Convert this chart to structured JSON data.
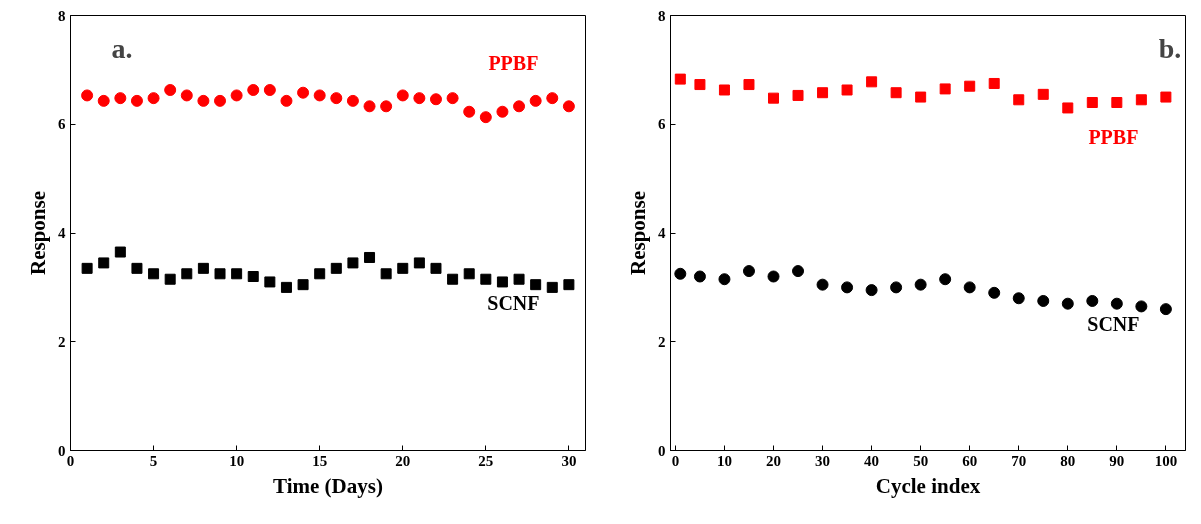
{
  "chart_data": [
    {
      "type": "scatter",
      "xlabel": "Time (Days)",
      "ylabel": "Response",
      "annotations": [
        "a."
      ],
      "xlim": [
        0,
        31
      ],
      "xticks": [
        0,
        5,
        10,
        15,
        20,
        25,
        30
      ],
      "ylim": [
        0,
        8
      ],
      "yticks": [
        0,
        2,
        4,
        6,
        8
      ],
      "grid": false,
      "x": [
        1,
        2,
        3,
        4,
        5,
        6,
        7,
        8,
        9,
        10,
        11,
        12,
        13,
        14,
        15,
        16,
        17,
        18,
        19,
        20,
        21,
        22,
        23,
        24,
        25,
        26,
        27,
        28,
        29,
        30
      ],
      "series": [
        {
          "name": "PPBF",
          "color": "#ff0000",
          "marker": "circle",
          "values": [
            6.53,
            6.43,
            6.48,
            6.43,
            6.48,
            6.63,
            6.53,
            6.43,
            6.43,
            6.53,
            6.63,
            6.63,
            6.43,
            6.58,
            6.53,
            6.48,
            6.43,
            6.33,
            6.33,
            6.53,
            6.48,
            6.46,
            6.48,
            6.23,
            6.13,
            6.23,
            6.33,
            6.43,
            6.48,
            6.33
          ]
        },
        {
          "name": "SCNF",
          "color": "#000000",
          "marker": "square",
          "values": [
            3.35,
            3.45,
            3.65,
            3.35,
            3.25,
            3.15,
            3.25,
            3.35,
            3.25,
            3.25,
            3.2,
            3.1,
            3.0,
            3.05,
            3.25,
            3.35,
            3.45,
            3.55,
            3.25,
            3.35,
            3.45,
            3.35,
            3.15,
            3.25,
            3.15,
            3.1,
            3.15,
            3.05,
            3.0,
            3.05
          ]
        }
      ]
    },
    {
      "type": "scatter",
      "xlabel": "Cycle index",
      "ylabel": "Response",
      "annotations": [
        "b."
      ],
      "xlim": [
        -1,
        104
      ],
      "xticks": [
        0,
        10,
        20,
        30,
        40,
        50,
        60,
        70,
        80,
        90,
        100
      ],
      "ylim": [
        0,
        8
      ],
      "yticks": [
        0,
        2,
        4,
        6,
        8
      ],
      "grid": false,
      "x": [
        1,
        5,
        10,
        15,
        20,
        25,
        30,
        35,
        40,
        45,
        50,
        55,
        60,
        65,
        70,
        75,
        80,
        85,
        90,
        95,
        100
      ],
      "series": [
        {
          "name": "PPBF",
          "color": "#ff0000",
          "marker": "square",
          "values": [
            6.83,
            6.73,
            6.63,
            6.73,
            6.48,
            6.53,
            6.58,
            6.63,
            6.78,
            6.58,
            6.5,
            6.65,
            6.7,
            6.75,
            6.45,
            6.55,
            6.3,
            6.4,
            6.4,
            6.45,
            6.5
          ]
        },
        {
          "name": "SCNF",
          "color": "#000000",
          "marker": "circle",
          "values": [
            3.25,
            3.2,
            3.15,
            3.3,
            3.2,
            3.3,
            3.05,
            3.0,
            2.95,
            3.0,
            3.05,
            3.15,
            3.0,
            2.9,
            2.8,
            2.75,
            2.7,
            2.75,
            2.7,
            2.65,
            2.6
          ]
        }
      ]
    }
  ]
}
